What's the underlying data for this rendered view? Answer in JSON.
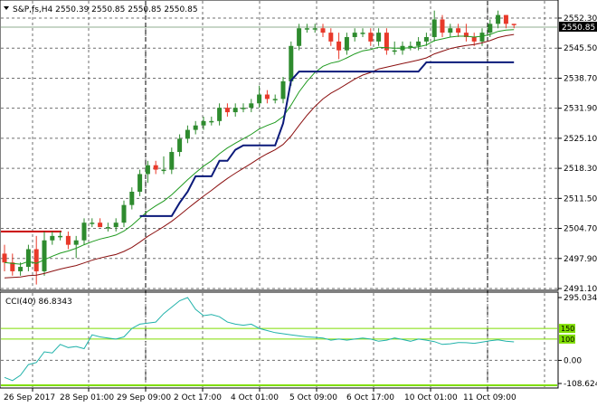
{
  "header": {
    "title": "S&P,fs,H4  2550.39 2550.85 2550.85 2550.85"
  },
  "price_axis": {
    "labels": [
      "2552.30",
      "2545.50",
      "2538.70",
      "2531.90",
      "2525.10",
      "2518.30",
      "2511.50",
      "2504.70",
      "2497.90",
      "2491.10"
    ],
    "current_price": "2550.85"
  },
  "time_axis": {
    "labels": [
      "26 Sep 2017",
      "28 Sep 01:00",
      "29 Sep 09:00",
      "2 Oct 17:00",
      "4 Oct 01:00",
      "5 Oct 09:00",
      "6 Oct 17:00",
      "10 Oct 01:00",
      "11 Oct 09:00"
    ]
  },
  "indicator": {
    "label": "CCI(40) 86.8343",
    "axis_labels": [
      "295.0346",
      "0.00",
      "-108.6242"
    ],
    "level_labels": [
      "150",
      "100"
    ]
  },
  "colors": {
    "bull": "#2e8b2e",
    "bear": "#e8392a",
    "ma_fast": "#1f9a1f",
    "ma_slow": "#8b1010",
    "trailing": "#0b1a7a",
    "cci": "#20b2aa",
    "level": "#7fdd00",
    "red_level": "#cc0000"
  },
  "chart_data": [
    {
      "type": "candlestick",
      "title": "S&P,fs,H4",
      "ylim": [
        2491.1,
        2552.3
      ],
      "candles": [
        [
          2499,
          2501,
          2495,
          2497
        ],
        [
          2497,
          2499,
          2494,
          2495
        ],
        [
          2495,
          2497,
          2494,
          2496
        ],
        [
          2496,
          2501,
          2495,
          2500
        ],
        [
          2500,
          2503,
          2492,
          2495
        ],
        [
          2495,
          2504,
          2494,
          2502
        ],
        [
          2502,
          2504,
          2501,
          2503
        ],
        [
          2503,
          2504,
          2502,
          2503
        ],
        [
          2503,
          2504,
          2500,
          2501
        ],
        [
          2501,
          2503,
          2498,
          2502
        ],
        [
          2502,
          2507,
          2501,
          2506
        ],
        [
          2506,
          2507,
          2505,
          2506
        ],
        [
          2506,
          2507,
          2505,
          2505
        ],
        [
          2505,
          2506,
          2504,
          2505
        ],
        [
          2505,
          2507,
          2504,
          2506
        ],
        [
          2506,
          2511,
          2505,
          2510
        ],
        [
          2510,
          2514,
          2509,
          2513
        ],
        [
          2513,
          2518,
          2512,
          2517
        ],
        [
          2517,
          2520,
          2515,
          2519
        ],
        [
          2519,
          2520,
          2517,
          2518
        ],
        [
          2518,
          2521,
          2517,
          2518
        ],
        [
          2518,
          2523,
          2517,
          2522
        ],
        [
          2522,
          2526,
          2521,
          2525
        ],
        [
          2525,
          2528,
          2524,
          2527
        ],
        [
          2527,
          2529,
          2526,
          2528
        ],
        [
          2528,
          2530,
          2527,
          2529
        ],
        [
          2529,
          2530,
          2528,
          2529
        ],
        [
          2529,
          2533,
          2528,
          2532
        ],
        [
          2532,
          2533,
          2530,
          2531
        ],
        [
          2531,
          2533,
          2530,
          2532
        ],
        [
          2532,
          2533,
          2531,
          2532
        ],
        [
          2532,
          2534,
          2531,
          2533
        ],
        [
          2533,
          2537,
          2532,
          2535
        ],
        [
          2535,
          2536,
          2533,
          2534
        ],
        [
          2534,
          2535,
          2533,
          2534
        ],
        [
          2534,
          2539,
          2533,
          2538
        ],
        [
          2538,
          2547,
          2537,
          2546
        ],
        [
          2546,
          2551,
          2545,
          2550
        ],
        [
          2550,
          2551,
          2549,
          2550
        ],
        [
          2550,
          2551,
          2549,
          2550
        ],
        [
          2550,
          2551,
          2548,
          2549
        ],
        [
          2549,
          2550,
          2546,
          2547
        ],
        [
          2547,
          2549,
          2543,
          2545
        ],
        [
          2545,
          2549,
          2544,
          2548
        ],
        [
          2548,
          2550,
          2547,
          2549
        ],
        [
          2549,
          2550,
          2548,
          2549
        ],
        [
          2549,
          2550,
          2546,
          2547
        ],
        [
          2547,
          2550,
          2546,
          2549
        ],
        [
          2549,
          2550,
          2544,
          2545
        ],
        [
          2545,
          2547,
          2544,
          2545
        ],
        [
          2545,
          2547,
          2544,
          2546
        ],
        [
          2546,
          2547,
          2545,
          2546
        ],
        [
          2546,
          2548,
          2545,
          2547
        ],
        [
          2547,
          2549,
          2546,
          2548
        ],
        [
          2548,
          2554,
          2547,
          2552
        ],
        [
          2552,
          2553,
          2548,
          2549
        ],
        [
          2549,
          2551,
          2548,
          2550
        ],
        [
          2550,
          2551,
          2548,
          2549
        ],
        [
          2549,
          2551,
          2547,
          2548
        ],
        [
          2548,
          2549,
          2546,
          2547
        ],
        [
          2547,
          2550,
          2546,
          2549
        ],
        [
          2549,
          2552,
          2548,
          2551
        ],
        [
          2551,
          2554,
          2550,
          2553
        ],
        [
          2553,
          2553,
          2550,
          2551
        ],
        [
          2551,
          2551,
          2550,
          2550.85
        ]
      ],
      "series": [
        {
          "name": "",
          "color": "#1f9a1f",
          "values": [
            2497.0,
            2496.8,
            2496.6,
            2497.2,
            2496.8,
            2497.6,
            2498.4,
            2499.1,
            2499.6,
            2500.2,
            2501.0,
            2501.7,
            2502.3,
            2502.7,
            2503.2,
            2504.1,
            2505.4,
            2507.0,
            2508.6,
            2509.8,
            2510.9,
            2512.3,
            2514.0,
            2515.7,
            2517.3,
            2518.8,
            2520.0,
            2521.6,
            2522.9,
            2524.0,
            2525.0,
            2526.0,
            2527.2,
            2528.0,
            2528.7,
            2530.0,
            2532.6,
            2535.6,
            2538.0,
            2540.0,
            2541.4,
            2542.1,
            2542.5,
            2543.3,
            2544.2,
            2544.9,
            2545.2,
            2545.7,
            2545.6,
            2545.5,
            2545.5,
            2545.6,
            2545.8,
            2546.2,
            2547.2,
            2547.6,
            2548.0,
            2548.2,
            2548.2,
            2548.0,
            2548.2,
            2548.6,
            2549.3,
            2549.6,
            2549.7
          ]
        },
        {
          "name": "",
          "color": "#8b1010",
          "values": [
            2493.5,
            2493.6,
            2493.7,
            2494.0,
            2494.1,
            2494.5,
            2495.0,
            2495.5,
            2495.9,
            2496.3,
            2496.9,
            2497.5,
            2498.0,
            2498.4,
            2498.8,
            2499.5,
            2500.4,
            2501.6,
            2502.9,
            2504.0,
            2505.1,
            2506.3,
            2507.7,
            2509.2,
            2510.6,
            2512.0,
            2513.3,
            2514.7,
            2516.0,
            2517.2,
            2518.3,
            2519.4,
            2520.6,
            2521.6,
            2522.5,
            2523.7,
            2525.6,
            2528.0,
            2530.3,
            2532.3,
            2534.0,
            2535.3,
            2536.3,
            2537.4,
            2538.5,
            2539.4,
            2540.0,
            2540.8,
            2541.2,
            2541.6,
            2542.0,
            2542.4,
            2542.8,
            2543.3,
            2544.2,
            2544.8,
            2545.4,
            2545.8,
            2546.1,
            2546.3,
            2546.7,
            2547.2,
            2547.9,
            2548.3,
            2548.6
          ]
        },
        {
          "name": "",
          "color": "#0b1a7a",
          "values": [
            null,
            null,
            null,
            null,
            null,
            null,
            null,
            null,
            null,
            null,
            null,
            null,
            null,
            null,
            null,
            null,
            null,
            2507.5,
            2507.5,
            2507.5,
            2507.5,
            2507.5,
            2510.5,
            2513.0,
            2516.5,
            2516.5,
            2516.5,
            2520.0,
            2520.0,
            2522.5,
            2523.5,
            2523.5,
            2523.5,
            2523.5,
            2523.5,
            2528.5,
            2538.2,
            2540.2,
            2540.2,
            2540.2,
            2540.2,
            2540.2,
            2540.2,
            2540.2,
            2540.2,
            2540.2,
            2540.2,
            2540.2,
            2540.2,
            2540.2,
            2540.2,
            2540.2,
            2540.2,
            2542.3,
            2542.3,
            2542.3,
            2542.3,
            2542.3,
            2542.3,
            2542.3,
            2542.3,
            2542.3,
            2542.3,
            2542.3,
            2542.3
          ]
        }
      ]
    },
    {
      "type": "line",
      "title": "CCI(40) 86.8343",
      "ylim": [
        -108.6242,
        295.0346
      ],
      "levels": [
        150,
        100
      ],
      "series": [
        {
          "name": "",
          "color": "#20b2aa",
          "values": [
            -80,
            -95,
            -70,
            -20,
            -10,
            40,
            35,
            75,
            60,
            65,
            55,
            120,
            110,
            105,
            100,
            110,
            150,
            170,
            175,
            180,
            220,
            250,
            280,
            295,
            240,
            210,
            215,
            205,
            180,
            170,
            165,
            170,
            150,
            140,
            130,
            125,
            120,
            115,
            110,
            108,
            105,
            95,
            100,
            95,
            100,
            105,
            100,
            90,
            95,
            105,
            98,
            90,
            100,
            95,
            88,
            75,
            78,
            84,
            83,
            80,
            86,
            92,
            96,
            90,
            86.83
          ]
        }
      ]
    }
  ]
}
